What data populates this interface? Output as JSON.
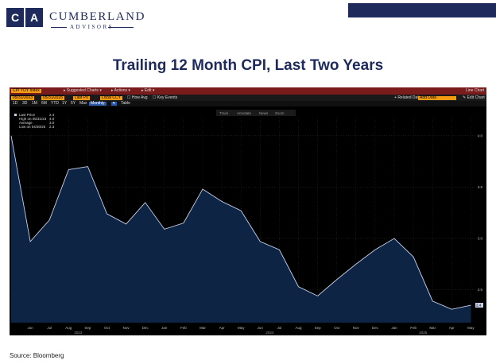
{
  "brand": {
    "mark_left": "C",
    "mark_right": "A",
    "name": "CUMBERLAND",
    "sub": "ADVISORS"
  },
  "slide": {
    "title": "Trailing 12 Month CPI, Last Two Years",
    "source": "Source: Bloomberg"
  },
  "terminal": {
    "ticker": "CPI YOY Index",
    "menu": [
      "Suggested Charts",
      "Actions",
      "Edit"
    ],
    "chart_type": "Line Chart",
    "start_date": "05/31/2023",
    "end_date": "05/31/2025",
    "field": "Last Px",
    "currency": "Local CCY",
    "how_avg": "How Avg",
    "key_events": "Key Events",
    "related_data": "Related Dat.",
    "add_data_placeholder": "Add Data",
    "edit_chart": "Edit Chart",
    "periods": [
      "1D",
      "3D",
      "1M",
      "6M",
      "YTD",
      "1Y",
      "5Y",
      "Max"
    ],
    "frequency": "Monthly",
    "table": "Table",
    "tools": [
      "Track",
      "Annotate",
      "News",
      "Zoom"
    ],
    "legend": [
      {
        "label": "Last Price",
        "value": "2.4"
      },
      {
        "label": "High on 05/31/23",
        "value": "4.0"
      },
      {
        "label": "Average",
        "value": "3.0"
      },
      {
        "label": "Low on 04/30/25",
        "value": "2.3"
      }
    ],
    "last_value_tag": "2.4"
  },
  "colors": {
    "navy": "#1f2a5c",
    "header_red": "#7a1c1c",
    "orange": "#f39c12",
    "line": "#c8d0e8",
    "fill": "#0d2444"
  },
  "chart_data": {
    "type": "area",
    "title": "",
    "x": [
      "May",
      "Jun",
      "Jul",
      "Aug",
      "Sep",
      "Oct",
      "Nov",
      "Dec",
      "Jan",
      "Feb",
      "Mar",
      "Apr",
      "May",
      "Jun",
      "Jul",
      "Aug",
      "Sep",
      "Oct",
      "Nov",
      "Dec",
      "Jan",
      "Feb",
      "Mar",
      "Apr",
      "May"
    ],
    "x_tick_labels": [
      "Jun",
      "Jul",
      "Aug",
      "Sep",
      "Oct",
      "Nov",
      "Dec",
      "Jan",
      "Feb",
      "Mar",
      "Apr",
      "May",
      "Jun",
      "Jul",
      "Aug",
      "Sep",
      "Oct",
      "Nov",
      "Dec",
      "Jan",
      "Feb",
      "Mar",
      "Apr",
      "May"
    ],
    "year_labels": [
      "2023",
      "2024",
      "2025"
    ],
    "series": [
      {
        "values": [
          4.0,
          2.97,
          3.18,
          3.67,
          3.7,
          3.24,
          3.14,
          3.35,
          3.09,
          3.15,
          3.48,
          3.36,
          3.27,
          2.97,
          2.89,
          2.53,
          2.44,
          2.6,
          2.75,
          2.89,
          3.0,
          2.82,
          2.39,
          2.31,
          2.35
        ]
      }
    ],
    "y_ticks": [
      "2.5",
      "3.0",
      "3.5",
      "4.0"
    ],
    "ylim": [
      2.18,
      4.13
    ],
    "grid": true
  }
}
